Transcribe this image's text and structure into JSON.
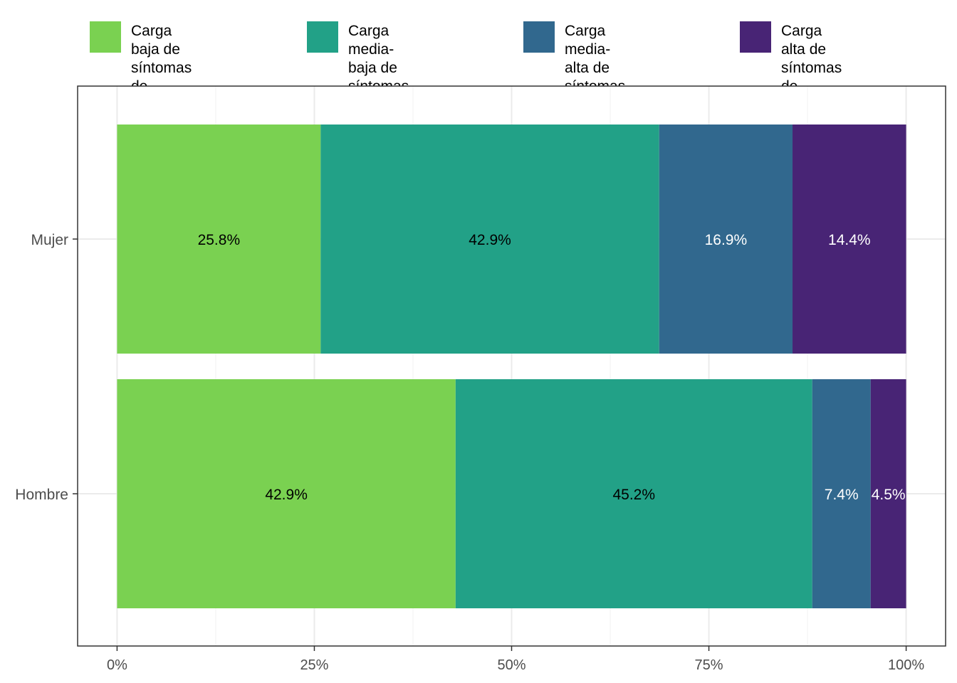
{
  "chart_data": {
    "type": "bar",
    "orientation": "horizontal",
    "stacked": true,
    "categories": [
      "Mujer",
      "Hombre"
    ],
    "series": [
      {
        "name": "Carga baja de\nsíntomas de depresión",
        "color": "#7AD151",
        "label_color": "#000000",
        "values": [
          25.8,
          42.9
        ]
      },
      {
        "name": "Carga media-baja de\nsíntomas de depresión",
        "color": "#22A187",
        "label_color": "#000000",
        "values": [
          42.9,
          45.2
        ]
      },
      {
        "name": "Carga media-alta de\nsíntomas de depresión",
        "color": "#31688E",
        "label_color": "#ffffff",
        "values": [
          16.9,
          7.4
        ]
      },
      {
        "name": "Carga alta de\nsíntomas de depresión",
        "color": "#482475",
        "label_color": "#ffffff",
        "values": [
          14.4,
          4.5
        ]
      }
    ],
    "data_labels": [
      [
        "25.8%",
        "42.9%",
        "16.9%",
        "14.4%"
      ],
      [
        "42.9%",
        "45.2%",
        "7.4%",
        "4.5%"
      ]
    ],
    "x_ticks": [
      0,
      25,
      50,
      75,
      100
    ],
    "x_tick_labels": [
      "0%",
      "25%",
      "50%",
      "75%",
      "100%"
    ],
    "xlim": [
      -5,
      105
    ],
    "xlabel": "",
    "ylabel": "",
    "legend_position": "top",
    "grid": true
  }
}
